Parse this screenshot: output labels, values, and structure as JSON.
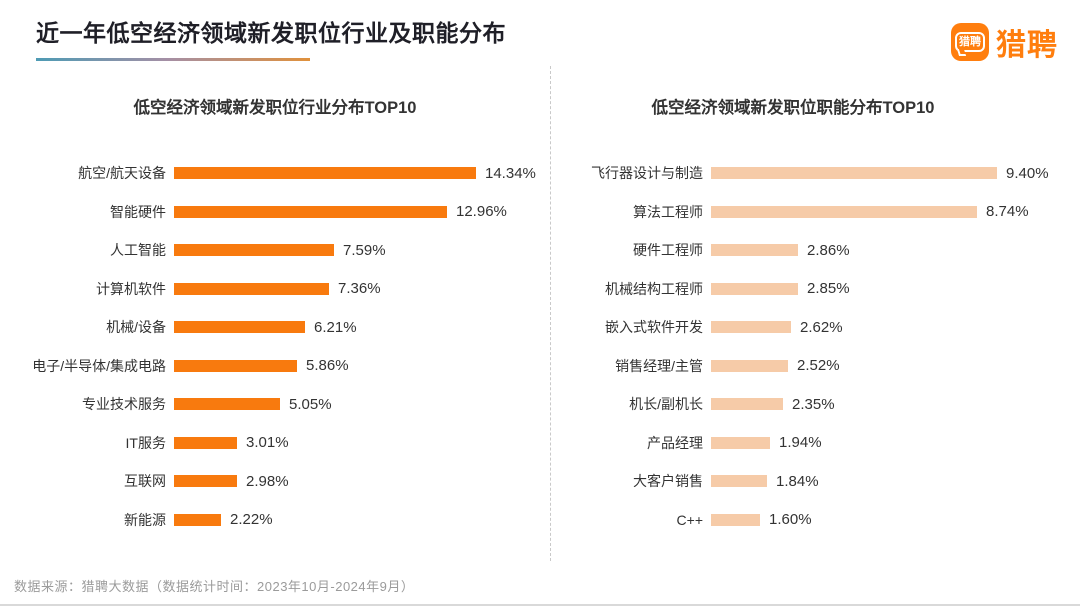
{
  "header": {
    "title": "近一年低空经济领域新发职位行业及职能分布",
    "logo_icon_text": "猎聘",
    "logo_text": "猎聘",
    "brand_color": "#FF7E0E",
    "accent_gradient": [
      "#4E9BB4",
      "#A58FA5",
      "#E0913C"
    ]
  },
  "chart_data": [
    {
      "type": "bar",
      "orientation": "horizontal",
      "title": "低空经济领域新发职位行业分布TOP10",
      "categories": [
        "航空/航天设备",
        "智能硬件",
        "人工智能",
        "计算机软件",
        "机械/设备",
        "电子/半导体/集成电路",
        "专业技术服务",
        "IT服务",
        "互联网",
        "新能源"
      ],
      "values": [
        14.34,
        12.96,
        7.59,
        7.36,
        6.21,
        5.86,
        5.05,
        3.01,
        2.98,
        2.22
      ],
      "value_labels": [
        "14.34%",
        "12.96%",
        "7.59%",
        "7.36%",
        "6.21%",
        "5.86%",
        "5.05%",
        "3.01%",
        "2.98%",
        "2.22%"
      ],
      "bar_color": "#F87A0E",
      "xlim": [
        0,
        14.34
      ],
      "grid": false,
      "legend": false,
      "value_label_position": "end"
    },
    {
      "type": "bar",
      "orientation": "horizontal",
      "title": "低空经济领域新发职位职能分布TOP10",
      "categories": [
        "飞行器设计与制造",
        "算法工程师",
        "硬件工程师",
        "机械结构工程师",
        "嵌入式软件开发",
        "销售经理/主管",
        "机长/副机长",
        "产品经理",
        "大客户销售",
        "C++"
      ],
      "values": [
        9.4,
        8.74,
        2.86,
        2.85,
        2.62,
        2.52,
        2.35,
        1.94,
        1.84,
        1.6
      ],
      "value_labels": [
        "9.40%",
        "8.74%",
        "2.86%",
        "2.85%",
        "2.62%",
        "2.52%",
        "2.35%",
        "1.94%",
        "1.84%",
        "1.60%"
      ],
      "bar_color": "#F6CBA8",
      "xlim": [
        0,
        9.4
      ],
      "grid": false,
      "legend": false,
      "value_label_position": "end"
    }
  ],
  "footer": {
    "source": "数据来源：猎聘大数据（数据统计时间：2023年10月-2024年9月）"
  }
}
